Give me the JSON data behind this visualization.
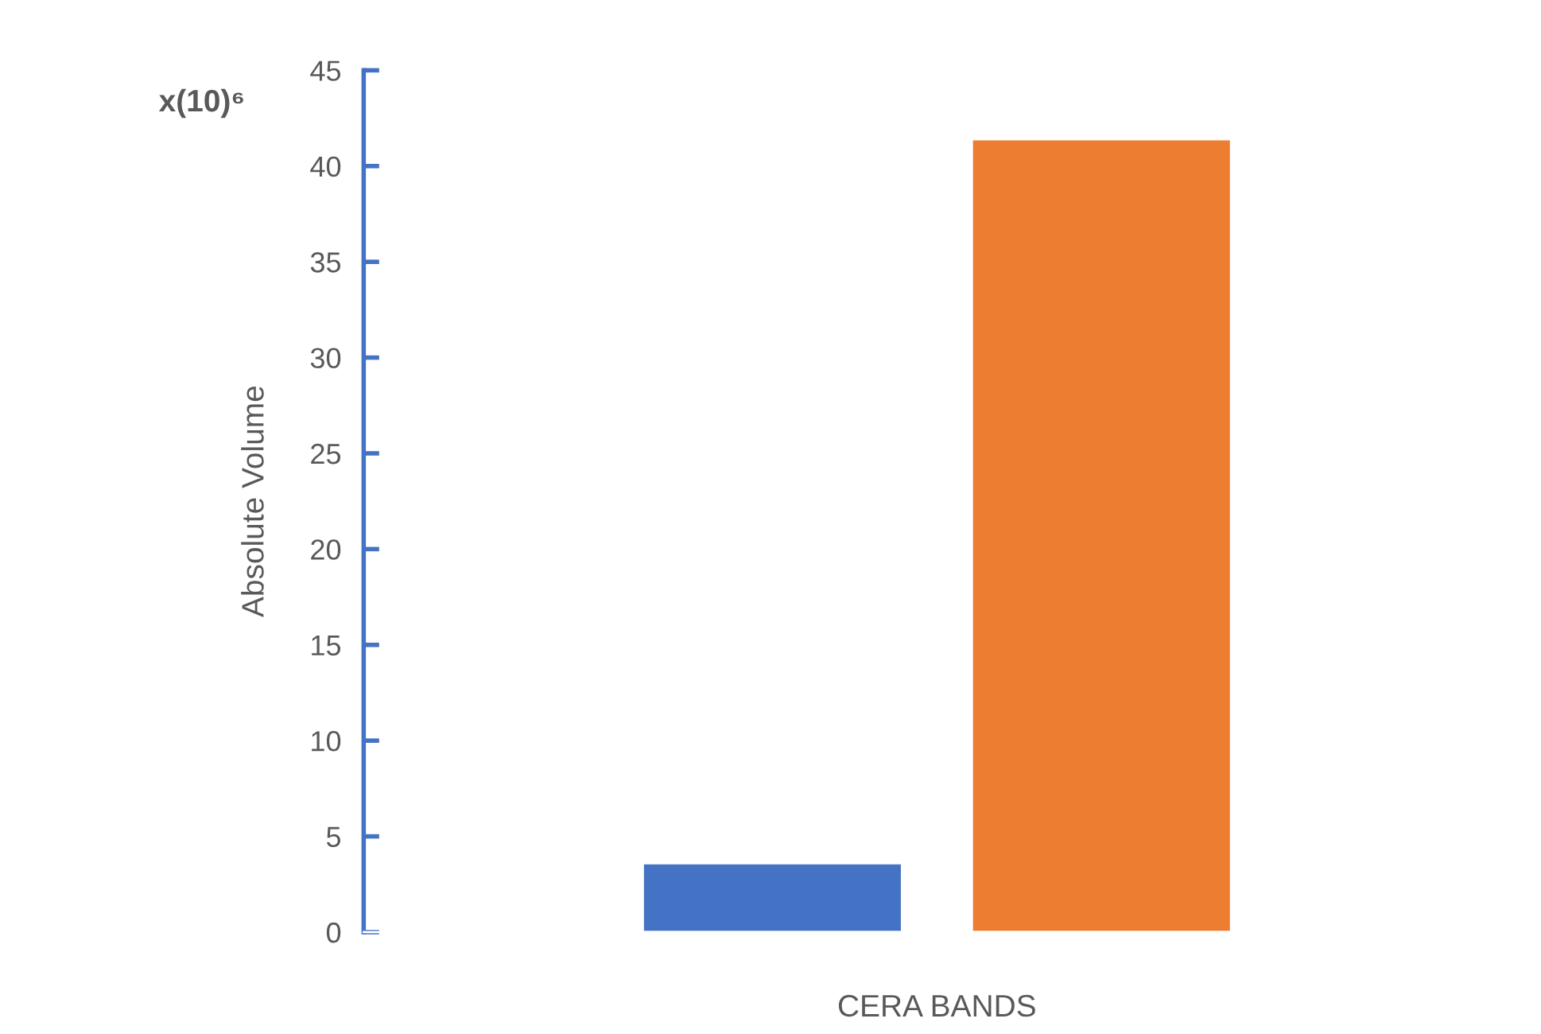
{
  "chart_data": {
    "type": "bar",
    "ylabel": "Absolute Volume",
    "categories": [
      "CERA BANDS"
    ],
    "series": [
      {
        "color": "#4472c4",
        "values": [
          3.6
        ]
      },
      {
        "color": "#ed7d31",
        "values": [
          41.4
        ]
      }
    ],
    "ylim": [
      0,
      45
    ],
    "yticks": [
      0,
      5,
      10,
      15,
      20,
      25,
      30,
      35,
      40,
      45
    ],
    "annotations": [
      "x(10)⁶"
    ],
    "grid": false,
    "legend": false
  }
}
